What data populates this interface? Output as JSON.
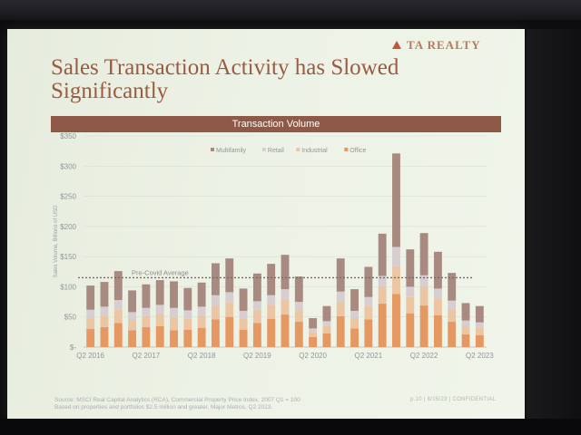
{
  "slide": {
    "brand": "TA REALTY",
    "title_line1": "Sales Transaction Activity has Slowed",
    "title_line2": "Significantly",
    "footer_line1": "Source: MSCI Real Capital Analytics (RCA), Commercial Property Price Index, 2007 Q1 = 100",
    "footer_line2": "Based on properties and portfolios $2.5 million and greater, Major Metros, Q2 2023.",
    "footer_right": "p.10  |  8/15/23  |  CONFIDENTIAL"
  },
  "chart_data": {
    "type": "bar",
    "stacked": true,
    "title": "Transaction Volume",
    "ylabel": "Sales Volume, Billions of USD",
    "ylim": [
      0,
      350
    ],
    "yticks": [
      0,
      50,
      100,
      150,
      200,
      250,
      300,
      350
    ],
    "ytick_labels": [
      "$-",
      "$50",
      "$100",
      "$150",
      "$200",
      "$250",
      "$300",
      "$350"
    ],
    "xtick_labels": [
      "Q2 2016",
      "Q2 2017",
      "Q2 2018",
      "Q2 2019",
      "Q2 2020",
      "Q2 2021",
      "Q2 2022",
      "Q2 2023"
    ],
    "xtick_indices": [
      0,
      4,
      8,
      12,
      16,
      20,
      24,
      28
    ],
    "grid": true,
    "legend_position": "top",
    "reference_line": {
      "label": "Pre-Covid Average",
      "value": 115
    },
    "categories": [
      "Q2 2016",
      "Q3 2016",
      "Q4 2016",
      "Q1 2017",
      "Q2 2017",
      "Q3 2017",
      "Q4 2017",
      "Q1 2018",
      "Q2 2018",
      "Q3 2018",
      "Q4 2018",
      "Q1 2019",
      "Q2 2019",
      "Q3 2019",
      "Q4 2019",
      "Q1 2020",
      "Q2 2020",
      "Q3 2020",
      "Q4 2020",
      "Q1 2021",
      "Q2 2021",
      "Q3 2021",
      "Q4 2021",
      "Q1 2022",
      "Q2 2022",
      "Q3 2022",
      "Q4 2022",
      "Q1 2023",
      "Q2 2023"
    ],
    "series": [
      {
        "name": "Multifamily",
        "color": "#a88a80",
        "values": [
          40,
          41,
          48,
          36,
          39,
          41,
          44,
          37,
          40,
          53,
          56,
          37,
          46,
          52,
          57,
          42,
          17,
          25,
          55,
          36,
          50,
          70,
          155,
          62,
          70,
          61,
          46,
          29,
          27
        ]
      },
      {
        "name": "Retail",
        "color": "#d7ced2",
        "values": [
          14,
          15,
          16,
          13,
          14,
          15,
          16,
          14,
          15,
          17,
          17,
          13,
          15,
          16,
          17,
          14,
          6,
          8,
          17,
          12,
          15,
          18,
          33,
          17,
          19,
          17,
          14,
          10,
          9
        ]
      },
      {
        "name": "Industrial",
        "color": "#ecc5a3",
        "values": [
          18,
          19,
          22,
          17,
          18,
          20,
          21,
          18,
          20,
          23,
          24,
          18,
          21,
          23,
          25,
          19,
          8,
          12,
          24,
          17,
          22,
          28,
          45,
          27,
          31,
          27,
          21,
          13,
          12
        ]
      },
      {
        "name": "Office",
        "color": "#e59862",
        "values": [
          30,
          33,
          40,
          28,
          33,
          35,
          28,
          29,
          32,
          46,
          50,
          29,
          40,
          47,
          54,
          42,
          17,
          23,
          51,
          31,
          46,
          72,
          88,
          56,
          69,
          53,
          42,
          21,
          20
        ]
      }
    ]
  }
}
